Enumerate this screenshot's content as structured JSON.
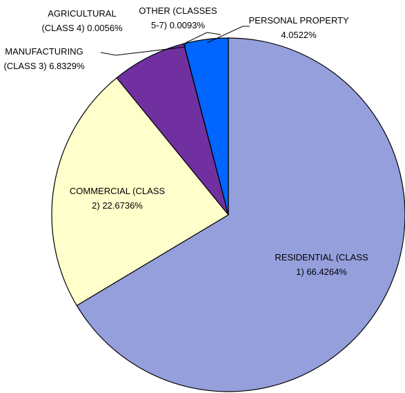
{
  "chart_data": {
    "type": "pie",
    "categories": [
      "RESIDENTIAL (CLASS 1)",
      "COMMERCIAL (CLASS 2)",
      "MANUFACTURING (CLASS 3)",
      "AGRICULTURAL (CLASS 4)",
      "OTHER (CLASSES 5-7)",
      "PERSONAL PROPERTY"
    ],
    "values": [
      66.4264,
      22.6736,
      6.8329,
      0.0056,
      0.0093,
      4.0522
    ],
    "value_labels": [
      "66.4264%",
      "22.6736%",
      "6.8329%",
      "0.0056%",
      "0.0093%",
      "4.0522%"
    ],
    "colors": [
      "#959fdc",
      "#ffffcc",
      "#7030a0",
      "#4f81bd",
      "#c0504d",
      "#0066ff"
    ]
  }
}
